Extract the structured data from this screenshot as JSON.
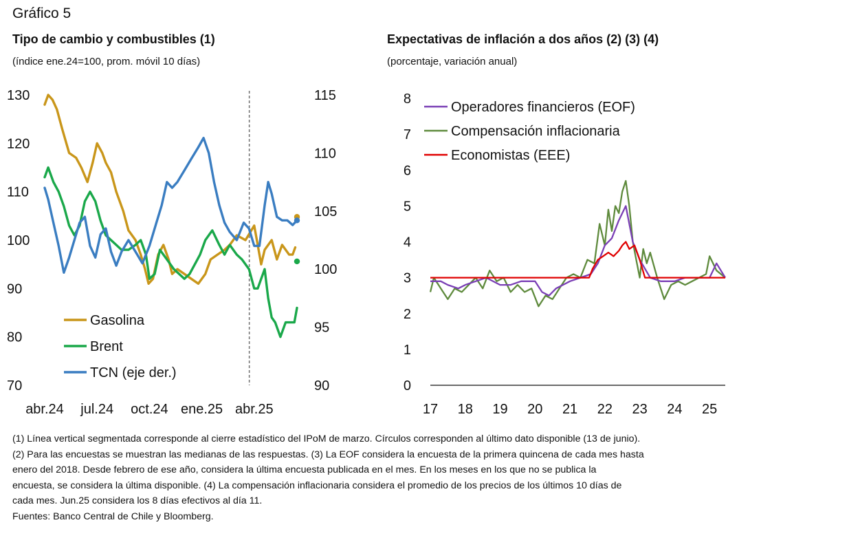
{
  "figure_label": "Gráfico 5",
  "notes": [
    "(1) Línea vertical segmentada corresponde al cierre estadístico del IPoM de marzo. Círculos corresponden al último dato disponible (13 de junio).",
    "(2) Para las encuestas se muestran las medianas de las respuestas. (3) La EOF considera la encuesta de la primera quincena de cada mes hasta",
    "enero del 2018. Desde febrero de ese año, considera la última encuesta publicada en el mes. En los meses en los que no se publica la",
    "encuesta, se considera la última disponible. (4) La compensación inflacionaria considera el promedio de los precios de los últimos 10 días de",
    "cada mes. Jun.25 considera los 8 días efectivos al día 11.",
    "Fuentes: Banco Central de Chile y Bloomberg."
  ],
  "chart_data": [
    {
      "type": "line",
      "title": "Tipo de cambio y combustibles (1)",
      "subtitle": "(índice ene.24=100, prom. móvil 10 días)",
      "y_left": {
        "ylim": [
          70,
          130
        ],
        "ticks": [
          70,
          80,
          90,
          100,
          110,
          120,
          130
        ]
      },
      "y_right": {
        "ylim": [
          90,
          115
        ],
        "ticks": [
          90,
          95,
          100,
          105,
          110,
          115
        ]
      },
      "x_ticks": [
        "abr.24",
        "jul.24",
        "oct.24",
        "ene.25",
        "abr.25"
      ],
      "x_ticks_pos": [
        3,
        6,
        9,
        12,
        15
      ],
      "xlim": [
        3,
        17.45
      ],
      "vline_x": 14.72,
      "grid": false,
      "legend_position": "bottom-left",
      "series": [
        {
          "name": "Gasolina",
          "axis": "left",
          "color": "#c9961a",
          "x": [
            3.0,
            3.2,
            3.45,
            3.7,
            4.0,
            4.4,
            4.8,
            5.1,
            5.45,
            5.75,
            6.0,
            6.3,
            6.5,
            6.8,
            7.1,
            7.5,
            7.8,
            8.2,
            8.5,
            8.75,
            8.95,
            9.2,
            9.5,
            9.8,
            10.1,
            10.3,
            10.6,
            11.0,
            11.4,
            11.8,
            12.2,
            12.5,
            12.9,
            13.3,
            13.6,
            14.0,
            14.5,
            15.0,
            15.2,
            15.4,
            15.6,
            16.0,
            16.3,
            16.6,
            17.0,
            17.2,
            17.35
          ],
          "y": [
            128,
            130,
            129,
            127,
            123,
            118,
            117,
            115,
            112,
            116,
            120,
            118,
            116,
            114,
            110,
            106,
            102,
            100,
            97,
            94,
            91,
            92,
            97,
            99,
            96,
            93,
            94,
            93,
            92,
            91,
            93,
            96,
            97,
            98,
            99,
            101,
            100,
            103,
            99,
            95,
            98,
            100,
            96,
            99,
            97,
            97,
            98.5
          ],
          "end_marker": 104.8
        },
        {
          "name": "Brent",
          "axis": "left",
          "color": "#1aa84a",
          "x": [
            3.0,
            3.2,
            3.5,
            3.8,
            4.1,
            4.4,
            4.7,
            5.0,
            5.3,
            5.6,
            5.9,
            6.2,
            6.5,
            6.8,
            7.1,
            7.4,
            7.8,
            8.2,
            8.5,
            8.8,
            9.0,
            9.3,
            9.6,
            10.0,
            10.4,
            10.7,
            11.0,
            11.3,
            11.6,
            11.9,
            12.2,
            12.6,
            13.0,
            13.3,
            13.6,
            14.0,
            14.3,
            14.7,
            15.0,
            15.2,
            15.4,
            15.6,
            15.8,
            16.0,
            16.2,
            16.5,
            16.8,
            17.1,
            17.3,
            17.45
          ],
          "y": [
            113,
            115,
            112,
            110,
            107,
            103,
            101,
            103,
            108,
            110,
            108,
            104,
            101,
            100,
            99,
            98,
            98,
            99,
            100,
            97,
            92,
            93,
            98,
            96,
            94,
            93,
            92,
            93,
            95,
            97,
            100,
            102,
            99,
            97,
            99,
            97,
            96,
            94,
            90,
            90,
            92,
            94,
            88,
            84,
            83,
            80,
            83,
            83,
            83,
            86
          ],
          "end_marker": 95.6
        },
        {
          "name": "TCN (eje der.)",
          "axis": "right",
          "color": "#3a7dc1",
          "x": [
            3.0,
            3.2,
            3.5,
            3.8,
            4.1,
            4.4,
            4.7,
            5.0,
            5.3,
            5.6,
            5.9,
            6.2,
            6.5,
            6.8,
            7.1,
            7.4,
            7.8,
            8.2,
            8.6,
            9.0,
            9.4,
            9.7,
            10.0,
            10.3,
            10.6,
            11.0,
            11.4,
            11.8,
            12.1,
            12.4,
            12.7,
            13.0,
            13.3,
            13.6,
            14.0,
            14.4,
            14.7,
            15.0,
            15.3,
            15.6,
            15.8,
            16.0,
            16.3,
            16.6,
            16.9,
            17.2,
            17.45
          ],
          "y": [
            107,
            106,
            104,
            102,
            99.7,
            101,
            102.5,
            104,
            104.5,
            102,
            101,
            103,
            103.5,
            101.5,
            100.3,
            101.5,
            102.5,
            101.5,
            100.5,
            102,
            104,
            105.5,
            107.5,
            107,
            107.5,
            108.5,
            109.5,
            110.5,
            111.3,
            110,
            107.5,
            105.5,
            104,
            103.2,
            102.5,
            104,
            103.5,
            102,
            102,
            105.5,
            107.5,
            106.5,
            104.5,
            104.2,
            104.2,
            103.8,
            104.2
          ],
          "end_marker": 104.2
        }
      ]
    },
    {
      "type": "line",
      "title": "Expectativas de inflación a dos años (2) (3) (4)",
      "subtitle": "(porcentaje, variación anual)",
      "ylim": [
        0,
        8
      ],
      "y_ticks": [
        0,
        1,
        2,
        3,
        4,
        5,
        6,
        7,
        8
      ],
      "x_ticks": [
        "17",
        "18",
        "19",
        "20",
        "21",
        "22",
        "23",
        "24",
        "25"
      ],
      "x_ticks_pos": [
        17,
        18,
        19,
        20,
        21,
        22,
        23,
        24,
        25
      ],
      "xlim": [
        17,
        25.45
      ],
      "grid": false,
      "legend_position": "top-left",
      "series": [
        {
          "name": "Operadores financieros (EOF)",
          "color": "#7a3fb5",
          "x": [
            17.0,
            17.3,
            17.5,
            17.8,
            18.0,
            18.3,
            18.6,
            19.0,
            19.3,
            19.6,
            20.0,
            20.2,
            20.4,
            20.6,
            20.8,
            21.0,
            21.3,
            21.6,
            21.8,
            22.0,
            22.2,
            22.4,
            22.6,
            22.8,
            23.0,
            23.3,
            23.6,
            24.0,
            24.3,
            24.6,
            25.0,
            25.2,
            25.45
          ],
          "y": [
            2.9,
            2.9,
            2.8,
            2.7,
            2.8,
            2.9,
            3.0,
            2.8,
            2.8,
            2.9,
            2.9,
            2.6,
            2.5,
            2.7,
            2.8,
            2.9,
            3.0,
            3.1,
            3.4,
            3.9,
            4.1,
            4.6,
            5.0,
            4.0,
            3.5,
            3.0,
            2.9,
            2.9,
            3.0,
            3.0,
            3.0,
            3.4,
            3.0
          ]
        },
        {
          "name": "Compensación inflacionaria",
          "color": "#5e8a3c",
          "x": [
            17.0,
            17.1,
            17.3,
            17.5,
            17.7,
            17.9,
            18.1,
            18.3,
            18.5,
            18.7,
            18.9,
            19.1,
            19.3,
            19.5,
            19.7,
            19.9,
            20.1,
            20.3,
            20.5,
            20.7,
            20.9,
            21.1,
            21.3,
            21.5,
            21.7,
            21.85,
            22.0,
            22.1,
            22.2,
            22.3,
            22.4,
            22.5,
            22.6,
            22.7,
            22.8,
            22.9,
            23.0,
            23.1,
            23.2,
            23.3,
            23.5,
            23.7,
            23.9,
            24.1,
            24.3,
            24.5,
            24.7,
            24.9,
            25.0,
            25.2,
            25.45
          ],
          "y": [
            2.6,
            3.0,
            2.7,
            2.4,
            2.7,
            2.6,
            2.8,
            3.0,
            2.7,
            3.2,
            2.9,
            3.0,
            2.6,
            2.8,
            2.6,
            2.7,
            2.2,
            2.5,
            2.4,
            2.7,
            3.0,
            3.1,
            3.0,
            3.5,
            3.4,
            4.5,
            3.9,
            4.9,
            4.3,
            5.0,
            4.8,
            5.4,
            5.7,
            5.0,
            4.0,
            3.5,
            3.0,
            3.8,
            3.4,
            3.7,
            3.0,
            2.4,
            2.8,
            2.9,
            2.8,
            2.9,
            3.0,
            3.1,
            3.6,
            3.2,
            3.0
          ]
        },
        {
          "name": "Economistas (EEE)",
          "color": "#e00000",
          "x": [
            17.0,
            21.55,
            21.65,
            21.8,
            21.95,
            22.1,
            22.25,
            22.4,
            22.5,
            22.6,
            22.7,
            22.85,
            23.0,
            23.15,
            25.45
          ],
          "y": [
            3.0,
            3.0,
            3.25,
            3.5,
            3.6,
            3.7,
            3.6,
            3.75,
            3.9,
            4.0,
            3.8,
            3.9,
            3.5,
            3.0,
            3.0
          ]
        }
      ]
    }
  ]
}
